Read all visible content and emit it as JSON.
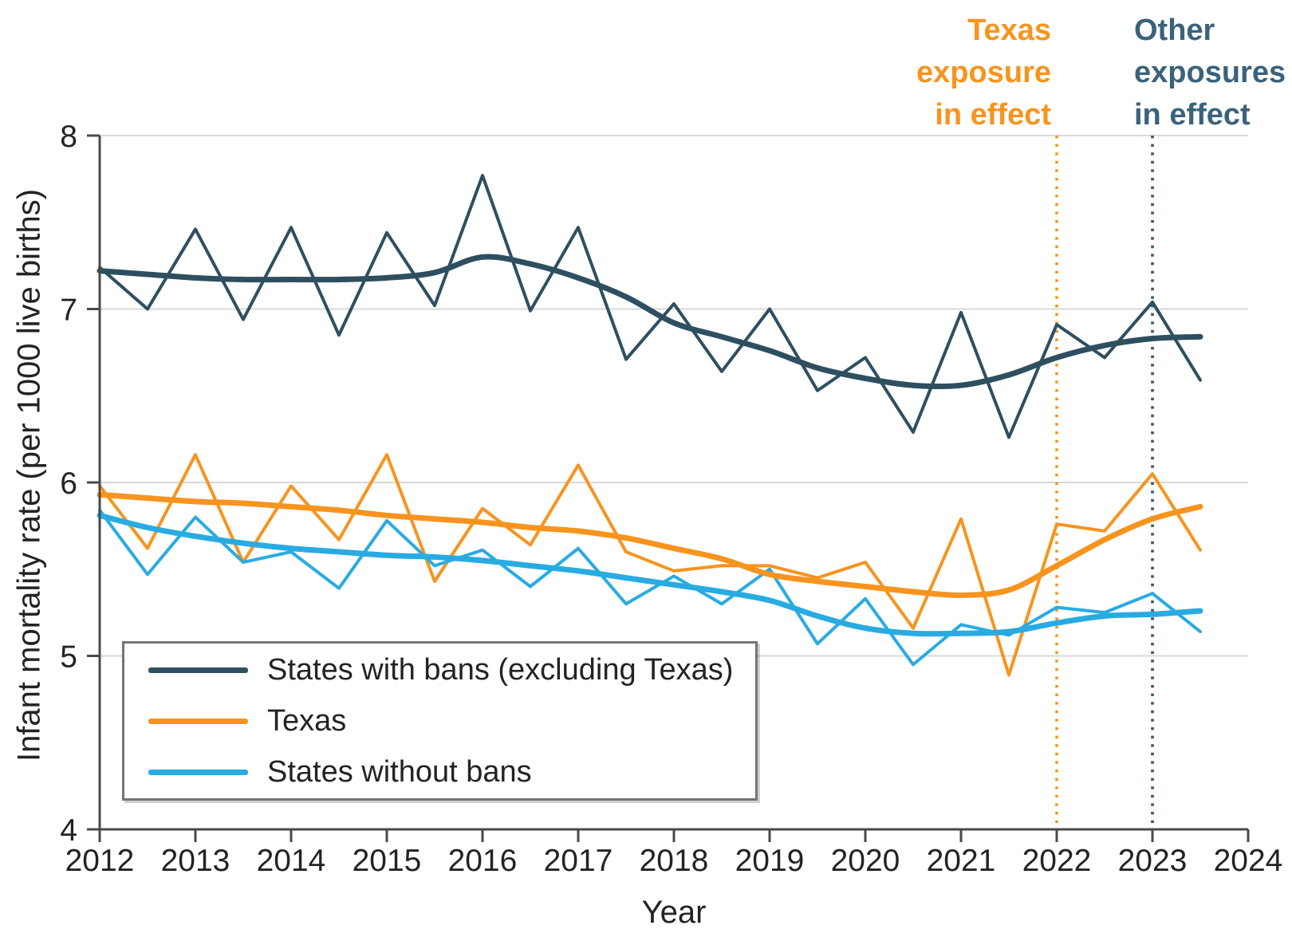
{
  "chart_data": {
    "type": "line",
    "title": "",
    "xlabel": "Year",
    "ylabel": "Infant mortality rate (per 1000 live births)",
    "x_ticks": [
      2012,
      2013,
      2014,
      2015,
      2016,
      2017,
      2018,
      2019,
      2020,
      2021,
      2022,
      2023,
      2024
    ],
    "y_ticks": [
      4,
      5,
      6,
      7,
      8
    ],
    "xlim": [
      2012,
      2024
    ],
    "ylim": [
      4,
      8
    ],
    "grid": "horizontal",
    "legend_position": "lower-left",
    "x": [
      2012,
      2012.5,
      2013,
      2013.5,
      2014,
      2014.5,
      2015,
      2015.5,
      2016,
      2016.5,
      2017,
      2017.5,
      2018,
      2018.5,
      2019,
      2019.5,
      2020,
      2020.5,
      2021,
      2021.5,
      2022,
      2022.5,
      2023,
      2023.5
    ],
    "series": [
      {
        "name": "States with bans (excluding Texas)",
        "color": "#2E4F60",
        "raw": [
          7.24,
          7.0,
          7.46,
          6.94,
          7.47,
          6.85,
          7.44,
          7.02,
          7.77,
          6.99,
          7.47,
          6.71,
          7.03,
          6.64,
          7.0,
          6.53,
          6.72,
          6.29,
          6.98,
          6.26,
          6.91,
          6.72,
          7.04,
          6.59
        ],
        "smoothed": [
          7.22,
          7.2,
          7.18,
          7.17,
          7.17,
          7.17,
          7.18,
          7.21,
          7.3,
          7.26,
          7.18,
          7.07,
          6.92,
          6.84,
          6.76,
          6.66,
          6.6,
          6.56,
          6.56,
          6.62,
          6.72,
          6.79,
          6.83,
          6.84
        ]
      },
      {
        "name": "Texas",
        "color": "#F7941E",
        "raw": [
          5.98,
          5.62,
          6.16,
          5.54,
          5.98,
          5.67,
          6.16,
          5.43,
          5.85,
          5.64,
          6.1,
          5.6,
          5.49,
          5.52,
          5.52,
          5.45,
          5.54,
          5.16,
          5.79,
          4.89,
          5.76,
          5.72,
          6.05,
          5.61
        ],
        "smoothed": [
          5.93,
          5.91,
          5.89,
          5.88,
          5.86,
          5.84,
          5.81,
          5.79,
          5.77,
          5.74,
          5.72,
          5.68,
          5.62,
          5.56,
          5.47,
          5.43,
          5.4,
          5.37,
          5.35,
          5.38,
          5.52,
          5.67,
          5.79,
          5.86
        ]
      },
      {
        "name": "States without bans",
        "color": "#29ABE2",
        "raw": [
          5.84,
          5.47,
          5.8,
          5.54,
          5.6,
          5.39,
          5.78,
          5.52,
          5.61,
          5.4,
          5.62,
          5.3,
          5.46,
          5.3,
          5.5,
          5.07,
          5.33,
          4.95,
          5.18,
          5.12,
          5.28,
          5.25,
          5.36,
          5.14
        ],
        "smoothed": [
          5.81,
          5.74,
          5.69,
          5.65,
          5.62,
          5.6,
          5.58,
          5.57,
          5.55,
          5.52,
          5.49,
          5.45,
          5.41,
          5.37,
          5.32,
          5.23,
          5.16,
          5.13,
          5.13,
          5.14,
          5.19,
          5.23,
          5.24,
          5.26
        ]
      }
    ],
    "events": [
      {
        "x": 2022,
        "line_color": "#F7941E",
        "label": "Texas exposure in effect"
      },
      {
        "x": 2023,
        "line_color": "#35596A",
        "label": "Other exposures in effect"
      }
    ]
  },
  "axis": {
    "x_title": "Year",
    "y_title": "Infant mortality rate (per 1000 live births)"
  },
  "annotations": {
    "texas": {
      "lines": [
        "Texas",
        "exposure",
        "in effect"
      ],
      "color": "#F7941E"
    },
    "other": {
      "lines": [
        "Other",
        "exposures",
        "in effect"
      ],
      "color": "#3A627B"
    }
  },
  "legend": {
    "items": [
      {
        "label": "States with bans (excluding Texas)",
        "color": "#2E4F60"
      },
      {
        "label": "Texas",
        "color": "#F7941E"
      },
      {
        "label": "States without bans",
        "color": "#29ABE2"
      }
    ]
  },
  "colors": {
    "grid": "#D8D8D8",
    "axis": "#4A4A4C",
    "text": "#232323",
    "background": "#FFFFFF"
  }
}
